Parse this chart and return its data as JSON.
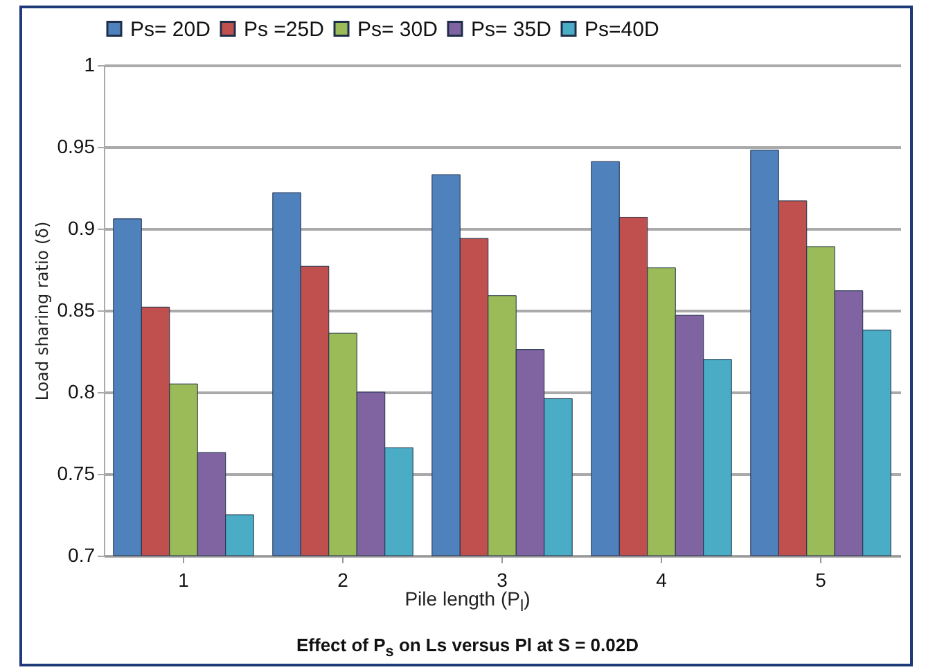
{
  "chart_data": {
    "type": "bar",
    "xlabel": "Pile length (P$_{l}$)",
    "ylabel": "Load sharing  ratio (δ)",
    "categories": [
      "1",
      "2",
      "3",
      "4",
      "5"
    ],
    "series": [
      {
        "name": "Ps= 20D",
        "color": "#4f81bd",
        "values": [
          0.906,
          0.922,
          0.933,
          0.941,
          0.948
        ]
      },
      {
        "name": "Ps =25D",
        "color": "#c0504d",
        "values": [
          0.852,
          0.877,
          0.894,
          0.907,
          0.917
        ]
      },
      {
        "name": "Ps= 30D",
        "color": "#9bbb59",
        "values": [
          0.805,
          0.836,
          0.859,
          0.876,
          0.889
        ]
      },
      {
        "name": "Ps= 35D",
        "color": "#8064a2",
        "values": [
          0.763,
          0.8,
          0.826,
          0.847,
          0.862
        ]
      },
      {
        "name": "Ps=40D",
        "color": "#4bacc6",
        "values": [
          0.725,
          0.766,
          0.796,
          0.82,
          0.838
        ]
      }
    ],
    "ylim": [
      0.7,
      1
    ],
    "yticks": [
      0.7,
      0.75,
      0.8,
      0.85,
      0.9,
      0.95,
      1
    ],
    "grid": "y",
    "legend": "top",
    "annotations": [
      "Effect of P$_{s}$ on Ls versus Pl at S = 0.02D"
    ]
  }
}
